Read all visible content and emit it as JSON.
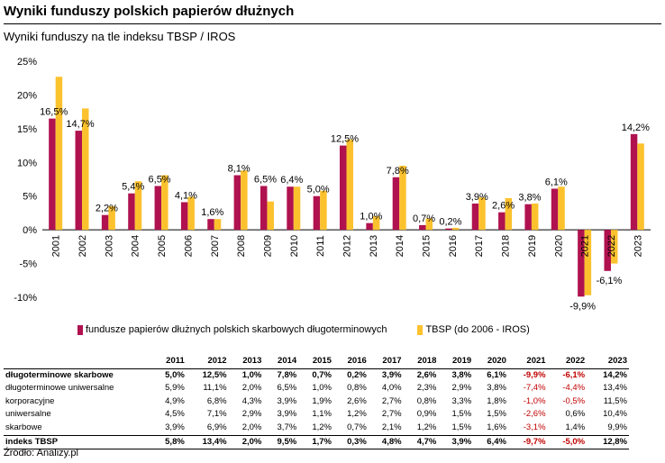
{
  "header": {
    "title": "Wyniki funduszy polskich papierów dłużnych",
    "subtitle": "Wyniki funduszy na tle indeksu TBSP / IROS"
  },
  "colors": {
    "funds": "#b0124f",
    "index": "#fcc22e"
  },
  "chart_data": {
    "type": "bar",
    "categories": [
      "2001",
      "2002",
      "2003",
      "2004",
      "2005",
      "2006",
      "2007",
      "2008",
      "2009",
      "2010",
      "2011",
      "2012",
      "2013",
      "2014",
      "2015",
      "2016",
      "2017",
      "2018",
      "2019",
      "2020",
      "2021",
      "2022",
      "2023"
    ],
    "series": [
      {
        "name": "fundusze papierów dłużnych polskich skarbowych długoterminowych",
        "values": [
          16.5,
          14.7,
          2.2,
          5.4,
          6.5,
          4.1,
          1.6,
          8.1,
          6.5,
          6.4,
          5.0,
          12.5,
          1.0,
          7.8,
          0.7,
          0.2,
          3.9,
          2.6,
          3.8,
          6.1,
          -9.9,
          -6.1,
          14.2
        ],
        "labels": [
          "16,5%",
          "14,7%",
          "2,2%",
          "5,4%",
          "6,5%",
          "4,1%",
          "1,6%",
          "8,1%",
          "6,5%",
          "6,4%",
          "5,0%",
          "12,5%",
          "1,0%",
          "7,8%",
          "0,7%",
          "0,2%",
          "3,9%",
          "2,6%",
          "3,8%",
          "6,1%",
          "-9,9%",
          "-6,1%",
          "14,2%"
        ]
      },
      {
        "name": "TBSP (do 2006 - IROS)",
        "values": [
          22.7,
          18.0,
          3.5,
          7.2,
          8.1,
          4.9,
          1.6,
          8.8,
          4.2,
          6.4,
          5.8,
          13.4,
          2.0,
          9.5,
          1.7,
          0.3,
          4.8,
          4.7,
          3.9,
          6.4,
          -9.7,
          -5.0,
          12.8
        ]
      }
    ],
    "ylim": [
      -10,
      25
    ],
    "yticks": [
      -10,
      -5,
      0,
      5,
      10,
      15,
      20,
      25
    ],
    "ytick_labels": [
      "-10%",
      "-5%",
      "0%",
      "5%",
      "10%",
      "15%",
      "20%",
      "25%"
    ],
    "legend_position": "bottom"
  },
  "table": {
    "columns": [
      "",
      "2011",
      "2012",
      "2013",
      "2014",
      "2015",
      "2016",
      "2017",
      "2018",
      "2019",
      "2020",
      "2021",
      "2022",
      "2023"
    ],
    "rows": [
      {
        "label": "długoterminowe skarbowe",
        "bold": true,
        "values": [
          "5,0%",
          "12,5%",
          "1,0%",
          "7,8%",
          "0,7%",
          "0,2%",
          "3,9%",
          "2,6%",
          "3,8%",
          "6,1%",
          "-9,9%",
          "-6,1%",
          "14,2%"
        ]
      },
      {
        "label": "długoterminowe uniwersalne",
        "bold": false,
        "values": [
          "5,9%",
          "11,1%",
          "2,0%",
          "6,5%",
          "1,0%",
          "0,8%",
          "4,0%",
          "2,3%",
          "2,9%",
          "3,8%",
          "-7,4%",
          "-4,4%",
          "13,4%"
        ]
      },
      {
        "label": "korporacyjne",
        "bold": false,
        "values": [
          "4,9%",
          "6,8%",
          "4,3%",
          "3,9%",
          "1,9%",
          "2,6%",
          "2,7%",
          "0,8%",
          "3,3%",
          "1,8%",
          "-1,0%",
          "-0,5%",
          "11,5%"
        ]
      },
      {
        "label": "uniwersalne",
        "bold": false,
        "values": [
          "4,5%",
          "7,1%",
          "2,9%",
          "3,9%",
          "1,1%",
          "1,2%",
          "2,7%",
          "0,9%",
          "1,5%",
          "1,5%",
          "-2,6%",
          "0,6%",
          "10,4%"
        ]
      },
      {
        "label": "skarbowe",
        "bold": false,
        "values": [
          "3,9%",
          "6,9%",
          "2,0%",
          "3,7%",
          "1,2%",
          "0,7%",
          "2,1%",
          "1,2%",
          "1,5%",
          "1,6%",
          "-3,1%",
          "1,4%",
          "9,9%"
        ]
      },
      {
        "label": "indeks TBSP",
        "bold": true,
        "values": [
          "5,8%",
          "13,4%",
          "2,0%",
          "9,5%",
          "1,7%",
          "0,3%",
          "4,8%",
          "4,7%",
          "3,9%",
          "6,4%",
          "-9,7%",
          "-5,0%",
          "12,8%"
        ]
      }
    ]
  },
  "footer": {
    "source": "Źródło: Analizy.pl"
  }
}
